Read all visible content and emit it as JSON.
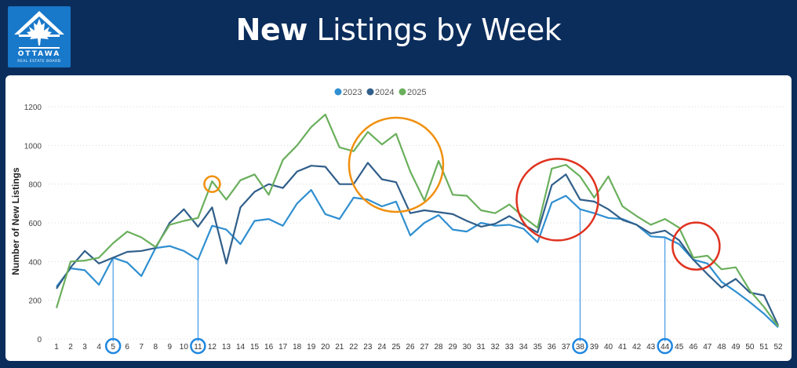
{
  "header": {
    "title_bold": "New",
    "title_rest": "Listings by Week",
    "logo_line1": "OTTAWA",
    "logo_line2": "REAL ESTATE BOARD"
  },
  "colors": {
    "background": "#0b2d5c",
    "s2023": "#2f8fd0",
    "s2024": "#315f8a",
    "s2025": "#6aaf5c",
    "orange": "#f0900f",
    "red": "#e0321f",
    "marker_blue": "#1f87e0"
  },
  "chart_data": {
    "type": "line",
    "title": "New Listings by Week",
    "xlabel": "",
    "ylabel": "Number of New Listings",
    "ylim": [
      0,
      1200
    ],
    "yticks": [
      0,
      200,
      400,
      600,
      800,
      1000,
      1200
    ],
    "grid": true,
    "legend_position": "top-center",
    "x": [
      1,
      2,
      3,
      4,
      5,
      6,
      7,
      8,
      9,
      10,
      11,
      12,
      13,
      14,
      15,
      16,
      17,
      18,
      19,
      20,
      21,
      22,
      23,
      24,
      25,
      26,
      27,
      28,
      29,
      30,
      31,
      32,
      33,
      34,
      35,
      36,
      37,
      38,
      39,
      40,
      41,
      42,
      43,
      44,
      45,
      46,
      47,
      48,
      49,
      50,
      51,
      52
    ],
    "series": [
      {
        "name": "2023",
        "color": "#2f8fd0",
        "values": [
          270,
          365,
          355,
          280,
          420,
          395,
          325,
          470,
          480,
          455,
          410,
          585,
          565,
          490,
          610,
          620,
          585,
          700,
          770,
          645,
          620,
          730,
          720,
          685,
          710,
          535,
          600,
          640,
          565,
          555,
          600,
          585,
          590,
          570,
          500,
          705,
          740,
          670,
          650,
          625,
          620,
          590,
          530,
          525,
          490,
          410,
          390,
          295,
          245,
          190,
          130,
          60
        ]
      },
      {
        "name": "2024",
        "color": "#315f8a",
        "values": [
          260,
          370,
          455,
          390,
          420,
          450,
          455,
          470,
          600,
          670,
          580,
          680,
          390,
          680,
          760,
          800,
          780,
          865,
          895,
          890,
          800,
          800,
          910,
          825,
          810,
          650,
          665,
          655,
          645,
          610,
          580,
          595,
          635,
          590,
          550,
          795,
          850,
          720,
          710,
          670,
          615,
          590,
          545,
          560,
          510,
          410,
          335,
          265,
          310,
          240,
          225,
          70
        ]
      },
      {
        "name": "2025",
        "color": "#6aaf5c",
        "values": [
          160,
          400,
          405,
          420,
          495,
          555,
          525,
          475,
          590,
          610,
          625,
          815,
          720,
          820,
          850,
          745,
          925,
          1000,
          1095,
          1160,
          990,
          970,
          1070,
          1005,
          1060,
          865,
          715,
          920,
          745,
          740,
          665,
          650,
          695,
          630,
          575,
          880,
          900,
          840,
          730,
          840,
          685,
          635,
          590,
          620,
          575,
          420,
          430,
          360,
          370,
          250,
          165,
          65
        ]
      }
    ],
    "highlighted_weeks": [
      5,
      11,
      38,
      44
    ]
  }
}
